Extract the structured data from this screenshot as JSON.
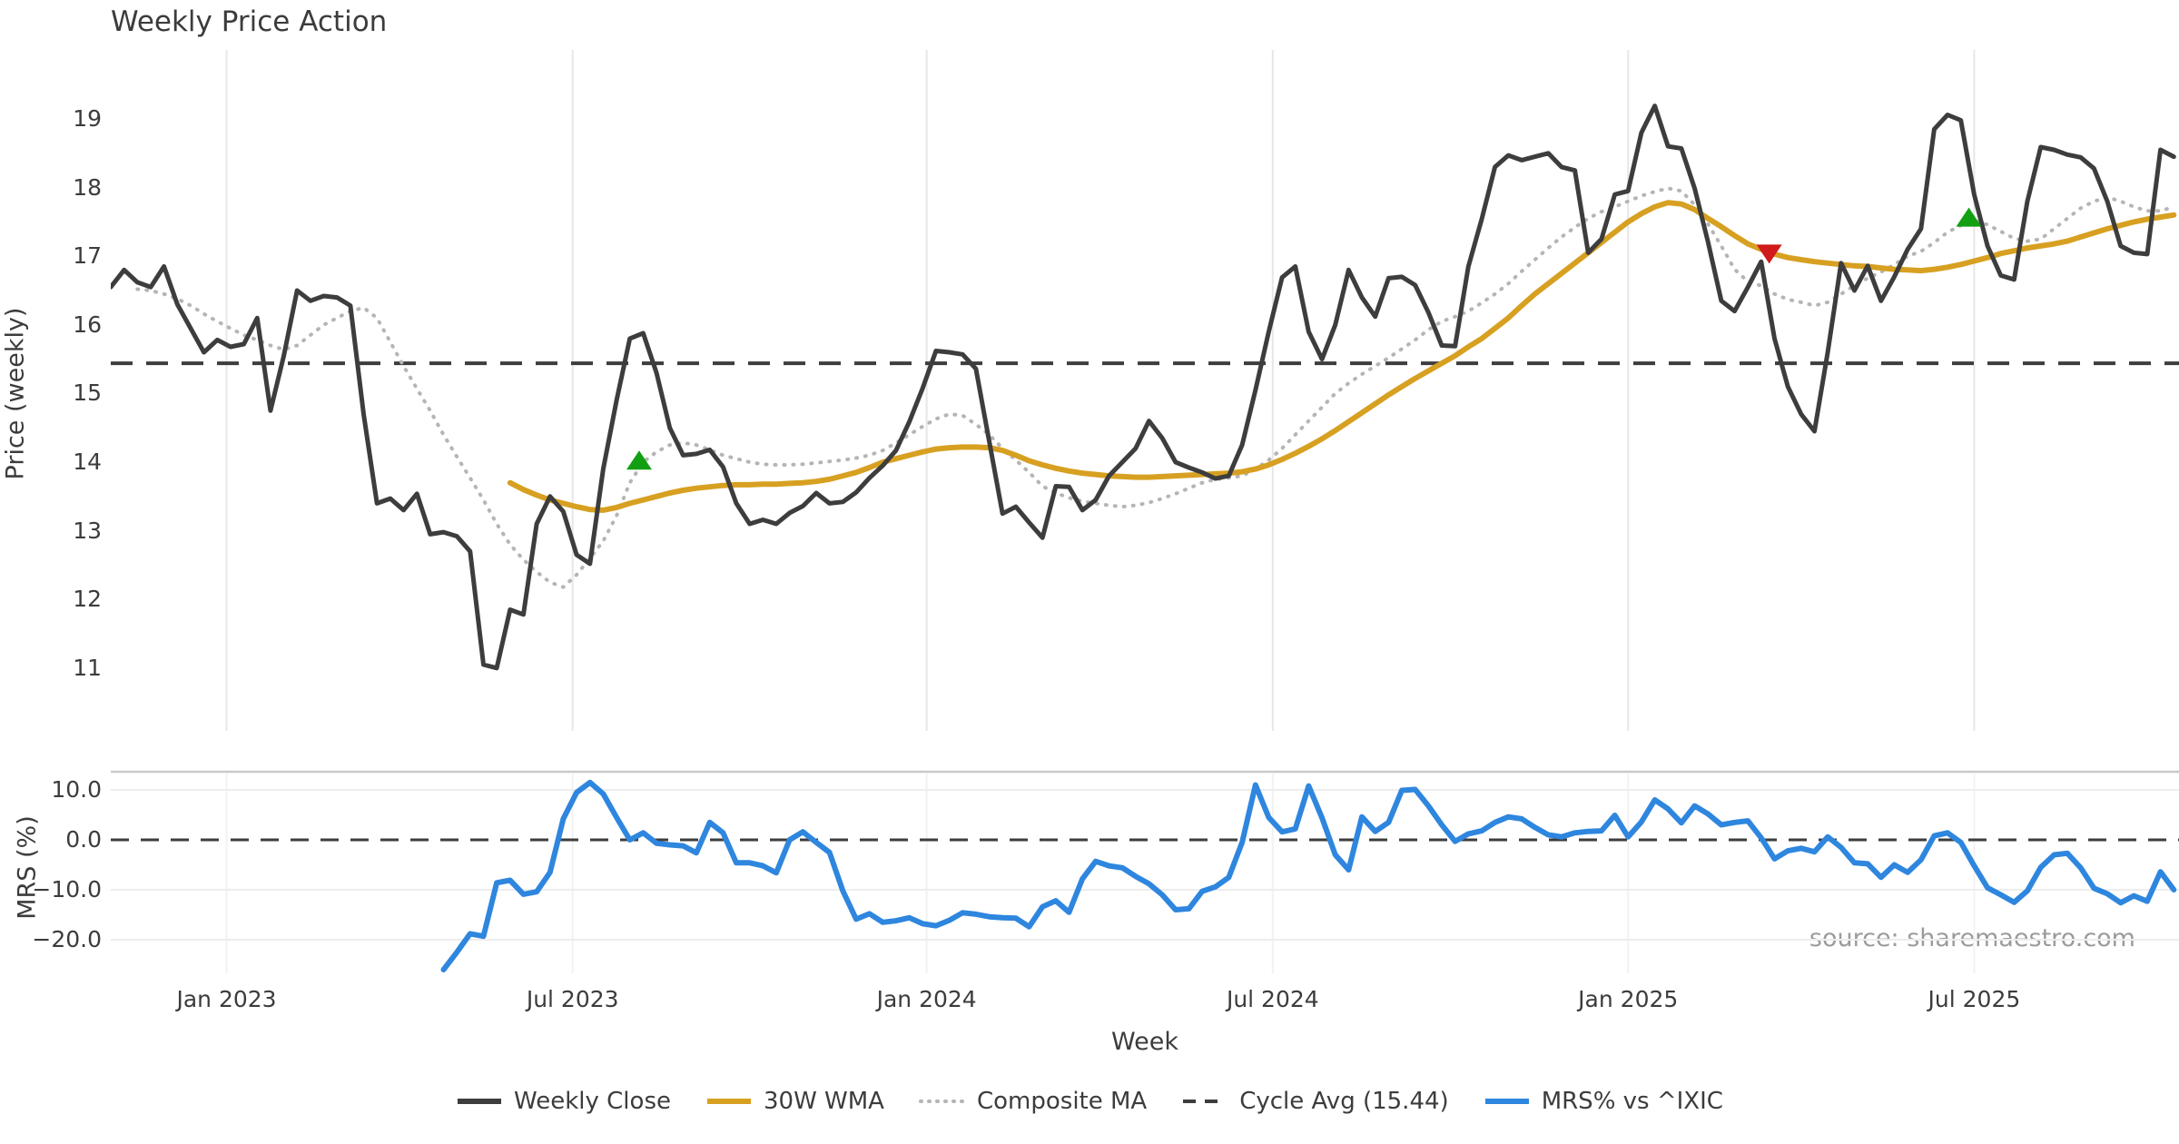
{
  "title": "Weekly Price Action",
  "source_note": "source: sharemaestro.com",
  "axis": {
    "price_ylabel": "Price (weekly)",
    "mrs_ylabel": "MRS (%)",
    "xlabel": "Week"
  },
  "colors": {
    "close": "#3d3d3d",
    "wma": "#d7a021",
    "composite": "#b5b5b5",
    "cycle": "#3d3d3d",
    "mrs": "#2e86de",
    "buy_marker": "#12a012",
    "sell_marker": "#cf1b1b",
    "grid_vertical": "#e7e7e7",
    "grid_horizontal": "#ededed",
    "panel_border": "#c9c9c9",
    "text": "#3c3c3c",
    "source_text": "#9b9b9b"
  },
  "legend": [
    {
      "label": "Weekly Close",
      "color": "#3d3d3d",
      "style": "solid"
    },
    {
      "label": "30W WMA",
      "color": "#d7a021",
      "style": "solid"
    },
    {
      "label": "Composite MA",
      "color": "#b5b5b5",
      "style": "dotted"
    },
    {
      "label": "Cycle Avg (15.44)",
      "color": "#3d3d3d",
      "style": "dashed"
    },
    {
      "label": "MRS% vs ^IXIC",
      "color": "#2e86de",
      "style": "solid"
    }
  ],
  "chart_data": [
    {
      "type": "line",
      "panel": "price",
      "title": "Weekly Price Action",
      "ylabel": "Price (weekly)",
      "yticks": [
        19,
        18,
        17,
        16,
        15,
        14,
        13,
        12,
        11
      ],
      "ylim": [
        10.02,
        20.07
      ],
      "xlim_weeks": [
        0,
        155.3
      ],
      "x_ticks": [
        {
          "label": "Jan 2023",
          "week": 8.7
        },
        {
          "label": "Jul 2023",
          "week": 34.7
        },
        {
          "label": "Jan 2024",
          "week": 61.3
        },
        {
          "label": "Jul 2024",
          "week": 87.3
        },
        {
          "label": "Jan 2025",
          "week": 114.0
        },
        {
          "label": "Jul 2025",
          "week": 140.0
        }
      ],
      "cycle_avg": 15.44,
      "series": [
        {
          "name": "Weekly Close",
          "values": [
            16.55,
            16.8,
            16.62,
            16.55,
            16.85,
            16.3,
            15.95,
            15.6,
            15.78,
            15.68,
            15.72,
            16.1,
            14.75,
            15.55,
            16.5,
            16.35,
            16.42,
            16.4,
            16.28,
            14.7,
            13.4,
            13.47,
            13.3,
            13.54,
            12.95,
            12.98,
            12.92,
            12.7,
            11.05,
            11.0,
            11.85,
            11.78,
            13.1,
            13.5,
            13.28,
            12.65,
            12.52,
            13.9,
            14.9,
            15.8,
            15.88,
            15.3,
            14.5,
            14.1,
            14.12,
            14.18,
            13.93,
            13.4,
            13.1,
            13.16,
            13.1,
            13.26,
            13.36,
            13.55,
            13.4,
            13.42,
            13.56,
            13.77,
            13.95,
            14.17,
            14.59,
            15.08,
            15.62,
            15.6,
            15.57,
            15.36,
            14.3,
            13.25,
            13.35,
            13.12,
            12.9,
            13.65,
            13.64,
            13.3,
            13.45,
            13.8,
            14.0,
            14.2,
            14.6,
            14.35,
            14.0,
            13.92,
            13.85,
            13.76,
            13.8,
            14.25,
            15.05,
            15.9,
            16.69,
            16.85,
            15.9,
            15.5,
            16.0,
            16.8,
            16.4,
            16.12,
            16.68,
            16.7,
            16.58,
            16.18,
            15.7,
            15.69,
            16.85,
            17.54,
            18.3,
            18.47,
            18.4,
            18.45,
            18.5,
            18.3,
            18.25,
            17.05,
            17.25,
            17.9,
            17.95,
            18.8,
            19.19,
            18.6,
            18.57,
            17.99,
            17.21,
            16.35,
            16.2,
            16.55,
            16.92,
            15.8,
            15.1,
            14.7,
            14.45,
            15.6,
            16.9,
            16.5,
            16.86,
            16.35,
            16.7,
            17.1,
            17.4,
            18.85,
            19.06,
            18.98,
            17.9,
            17.15,
            16.72,
            16.66,
            17.8,
            18.59,
            18.55,
            18.48,
            18.44,
            18.28,
            17.8,
            17.15,
            17.05,
            17.03,
            18.55,
            18.45
          ]
        },
        {
          "name": "30W WMA",
          "values": [
            null,
            null,
            null,
            null,
            null,
            null,
            null,
            null,
            null,
            null,
            null,
            null,
            null,
            null,
            null,
            null,
            null,
            null,
            null,
            null,
            null,
            null,
            null,
            null,
            null,
            null,
            null,
            null,
            null,
            null,
            13.7,
            13.6,
            13.52,
            13.45,
            13.4,
            13.35,
            13.31,
            13.3,
            13.34,
            13.4,
            13.45,
            13.5,
            13.55,
            13.59,
            13.62,
            13.64,
            13.66,
            13.67,
            13.67,
            13.68,
            13.68,
            13.69,
            13.7,
            13.72,
            13.75,
            13.8,
            13.85,
            13.92,
            14.0,
            14.05,
            14.1,
            14.15,
            14.19,
            14.21,
            14.22,
            14.22,
            14.21,
            14.17,
            14.1,
            14.02,
            13.96,
            13.91,
            13.87,
            13.84,
            13.82,
            13.8,
            13.79,
            13.78,
            13.78,
            13.79,
            13.8,
            13.81,
            13.82,
            13.83,
            13.84,
            13.86,
            13.9,
            13.96,
            14.04,
            14.13,
            14.23,
            14.34,
            14.46,
            14.59,
            14.72,
            14.85,
            14.98,
            15.1,
            15.22,
            15.33,
            15.44,
            15.55,
            15.68,
            15.8,
            15.95,
            16.1,
            16.28,
            16.45,
            16.6,
            16.75,
            16.9,
            17.05,
            17.2,
            17.35,
            17.5,
            17.62,
            17.72,
            17.78,
            17.76,
            17.68,
            17.55,
            17.43,
            17.3,
            17.18,
            17.1,
            17.03,
            16.98,
            16.95,
            16.92,
            16.9,
            16.88,
            16.86,
            16.85,
            16.83,
            16.81,
            16.8,
            16.79,
            16.81,
            16.84,
            16.88,
            16.93,
            16.98,
            17.04,
            17.08,
            17.12,
            17.15,
            17.18,
            17.22,
            17.28,
            17.34,
            17.4,
            17.45,
            17.5,
            17.54,
            17.57,
            17.6
          ]
        },
        {
          "name": "Composite MA",
          "values": [
            null,
            null,
            16.52,
            16.5,
            16.45,
            16.38,
            16.28,
            16.16,
            16.05,
            15.95,
            15.85,
            15.78,
            15.7,
            15.64,
            15.7,
            15.85,
            16.0,
            16.1,
            16.2,
            16.25,
            16.1,
            15.75,
            15.4,
            15.07,
            14.75,
            14.4,
            14.08,
            13.77,
            13.45,
            13.1,
            12.8,
            12.58,
            12.4,
            12.25,
            12.18,
            12.36,
            12.6,
            12.85,
            13.22,
            13.7,
            14.0,
            14.15,
            14.25,
            14.28,
            14.25,
            14.18,
            14.1,
            14.05,
            14.0,
            13.97,
            13.96,
            13.96,
            13.97,
            13.99,
            14.01,
            14.03,
            14.06,
            14.1,
            14.17,
            14.28,
            14.4,
            14.52,
            14.63,
            14.7,
            14.68,
            14.55,
            14.4,
            14.2,
            14.03,
            13.85,
            13.65,
            13.55,
            13.48,
            13.43,
            13.4,
            13.37,
            13.35,
            13.37,
            13.41,
            13.47,
            13.54,
            13.62,
            13.7,
            13.75,
            13.77,
            13.8,
            13.9,
            14.03,
            14.2,
            14.4,
            14.6,
            14.8,
            15.0,
            15.15,
            15.28,
            15.4,
            15.52,
            15.65,
            15.78,
            15.93,
            16.05,
            16.12,
            16.2,
            16.32,
            16.45,
            16.6,
            16.78,
            16.95,
            17.12,
            17.28,
            17.42,
            17.55,
            17.65,
            17.72,
            17.8,
            17.88,
            17.94,
            17.99,
            17.95,
            17.75,
            17.47,
            17.15,
            16.81,
            16.63,
            16.57,
            16.45,
            16.37,
            16.33,
            16.28,
            16.33,
            16.45,
            16.57,
            16.68,
            16.77,
            16.88,
            17.0,
            17.07,
            17.2,
            17.35,
            17.45,
            17.52,
            17.46,
            17.36,
            17.26,
            17.22,
            17.25,
            17.4,
            17.55,
            17.7,
            17.8,
            17.86,
            17.8,
            17.72,
            17.66,
            17.66,
            17.72
          ]
        }
      ],
      "markers": [
        {
          "week": 39.7,
          "value": 14.03,
          "direction": "up",
          "color": "#12a012"
        },
        {
          "week": 124.6,
          "value": 17.03,
          "direction": "down",
          "color": "#cf1b1b"
        },
        {
          "week": 139.6,
          "value": 17.57,
          "direction": "up",
          "color": "#12a012"
        }
      ]
    },
    {
      "type": "line",
      "panel": "mrs",
      "ylabel": "MRS (%)",
      "xlabel": "Week",
      "yticks": [
        10.0,
        0.0,
        -10.0,
        -20.0
      ],
      "ytick_labels": [
        "10.0",
        "0.0",
        "−10.0",
        "−20.0"
      ],
      "ylim": [
        -27.3,
        14.0
      ],
      "zero_line": 0.0,
      "series": [
        {
          "name": "MRS% vs ^IXIC",
          "values": [
            null,
            null,
            null,
            null,
            null,
            null,
            null,
            null,
            null,
            null,
            null,
            null,
            null,
            null,
            null,
            null,
            null,
            null,
            null,
            null,
            null,
            null,
            null,
            null,
            null,
            -26.0,
            -22.5,
            -18.8,
            -19.3,
            -8.6,
            -8.1,
            -10.9,
            -10.4,
            -6.5,
            4.2,
            9.5,
            11.5,
            9.2,
            4.5,
            0.0,
            1.4,
            -0.7,
            -1.0,
            -1.2,
            -2.6,
            3.5,
            1.4,
            -4.6,
            -4.6,
            -5.2,
            -6.6,
            0.0,
            1.6,
            -0.5,
            -2.5,
            -10.2,
            -15.9,
            -14.8,
            -16.5,
            -16.2,
            -15.6,
            -16.8,
            -17.2,
            -16.1,
            -14.6,
            -14.9,
            -15.4,
            -15.6,
            -15.7,
            -17.4,
            -13.4,
            -12.2,
            -14.5,
            -7.8,
            -4.3,
            -5.2,
            -5.6,
            -7.3,
            -8.8,
            -11.0,
            -14.0,
            -13.8,
            -10.3,
            -9.4,
            -7.5,
            -0.5,
            11.0,
            4.5,
            1.6,
            2.2,
            10.8,
            4.4,
            -3.0,
            -6.0,
            4.6,
            1.7,
            3.5,
            9.9,
            10.1,
            6.8,
            3.0,
            -0.3,
            1.2,
            1.8,
            3.5,
            4.6,
            4.2,
            2.5,
            1.0,
            0.6,
            1.4,
            1.7,
            1.8,
            4.9,
            0.6,
            3.6,
            8.0,
            6.2,
            3.4,
            6.8,
            5.2,
            3.0,
            3.5,
            3.8,
            0.4,
            -3.8,
            -2.2,
            -1.7,
            -2.4,
            0.6,
            -1.5,
            -4.6,
            -4.8,
            -7.5,
            -5.0,
            -6.5,
            -4.0,
            0.8,
            1.4,
            -0.5,
            -5.2,
            -9.6,
            -11.0,
            -12.5,
            -10.2,
            -5.5,
            -3.0,
            -2.7,
            -5.6,
            -9.7,
            -10.8,
            -12.6,
            -11.2,
            -12.3,
            -6.4,
            -10.0
          ]
        }
      ]
    }
  ]
}
